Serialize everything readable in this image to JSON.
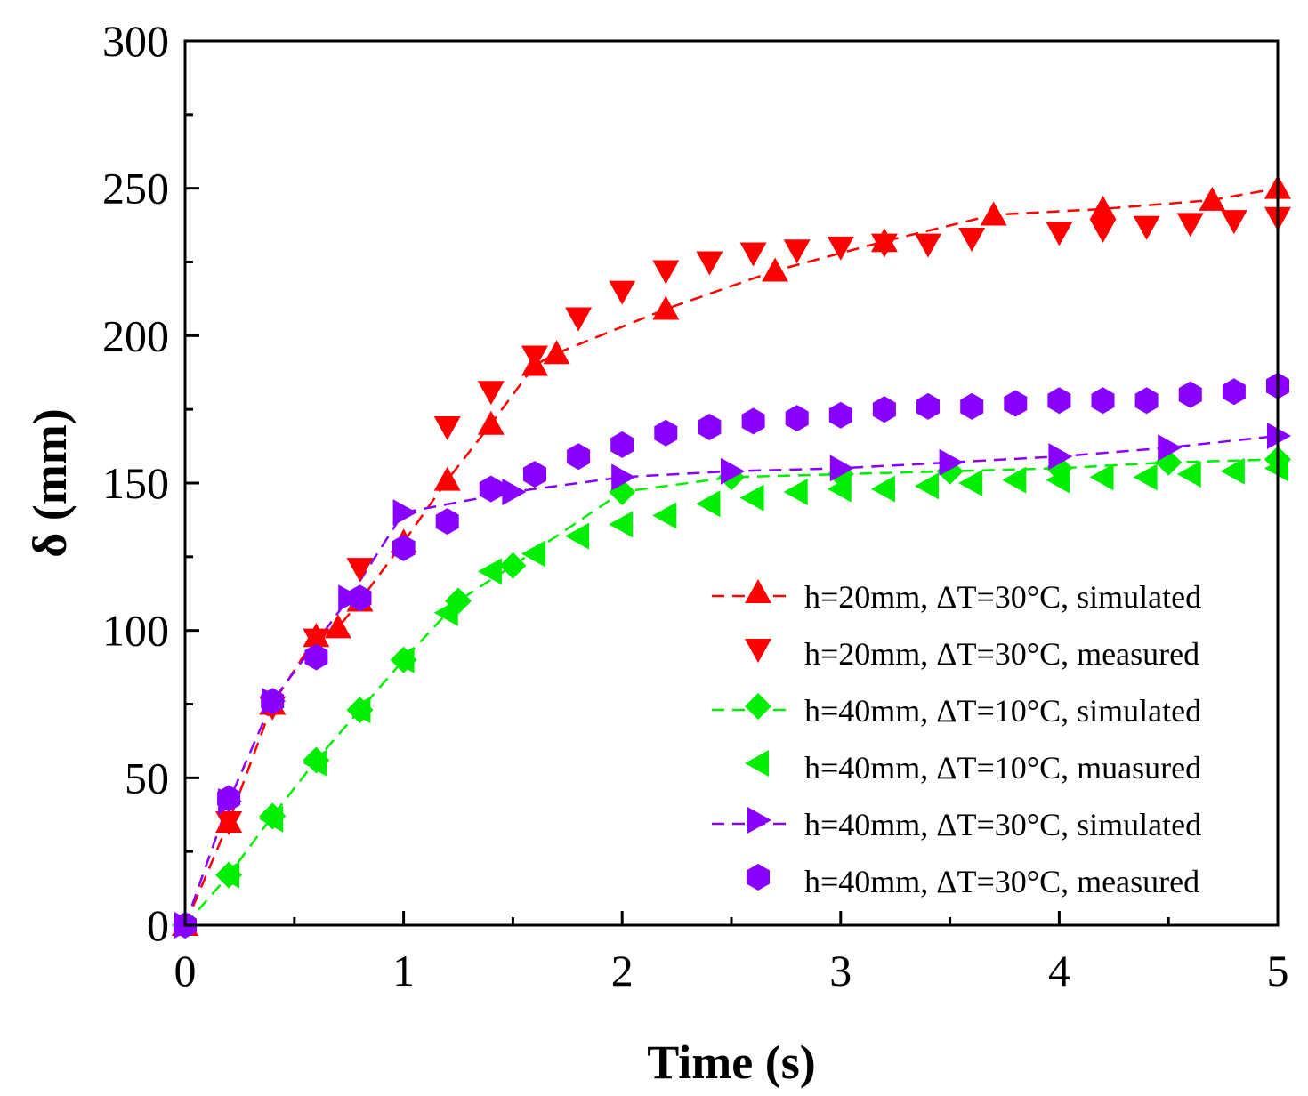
{
  "chart_data": {
    "type": "scatter",
    "title": "",
    "xlabel": "Time (s)",
    "ylabel": "δ (mm)",
    "xlim": [
      0,
      5
    ],
    "ylim": [
      0,
      300
    ],
    "x_ticks": [
      "0",
      "1",
      "2",
      "3",
      "4",
      "5"
    ],
    "y_ticks": [
      "0",
      "50",
      "100",
      "150",
      "200",
      "250",
      "300"
    ],
    "grid": false,
    "legend_position": "bottom-right",
    "series": [
      {
        "name": "h=20mm, ΔT=30°C, simulated",
        "marker": "triangle-up",
        "line": "dashed",
        "color": "#ff0000",
        "x": [
          0,
          0.2,
          0.4,
          0.6,
          0.7,
          0.8,
          1.0,
          1.2,
          1.4,
          1.6,
          1.7,
          2.2,
          2.7,
          3.2,
          3.7,
          4.2,
          4.7,
          5.0
        ],
        "y": [
          0,
          35,
          75,
          98,
          101,
          110,
          130,
          151,
          170,
          190,
          194,
          209,
          222,
          232,
          241,
          243,
          246,
          250
        ]
      },
      {
        "name": "h=20mm, ΔT=30°C, measured",
        "marker": "triangle-down",
        "line": "none",
        "color": "#ff0000",
        "x": [
          0.2,
          0.4,
          0.6,
          0.8,
          1.2,
          1.4,
          1.6,
          1.8,
          2.0,
          2.2,
          2.4,
          2.6,
          2.8,
          3.0,
          3.2,
          3.4,
          3.6,
          4.0,
          4.2,
          4.4,
          4.6,
          4.8,
          5.0
        ],
        "y": [
          35,
          74,
          97,
          121,
          169,
          181,
          193,
          206,
          215,
          222,
          225,
          228,
          229,
          230,
          231,
          231,
          233,
          235,
          236,
          237,
          238,
          239,
          240
        ]
      },
      {
        "name": "h=40mm, ΔT=10°C, simulated",
        "marker": "diamond",
        "line": "dashed",
        "color": "#00ee00",
        "x": [
          0,
          0.2,
          0.4,
          0.6,
          0.8,
          1.0,
          1.25,
          1.5,
          2.0,
          2.5,
          3.0,
          3.5,
          4.0,
          4.5,
          5.0
        ],
        "y": [
          0,
          17,
          37,
          56,
          73,
          90,
          110,
          122,
          147,
          152,
          153,
          154,
          155,
          157,
          158
        ]
      },
      {
        "name": "h=40mm, ΔT=10°C, muasured",
        "marker": "triangle-left",
        "line": "none",
        "color": "#00ee00",
        "x": [
          0.2,
          0.4,
          0.6,
          0.8,
          1.0,
          1.2,
          1.4,
          1.6,
          1.8,
          2.0,
          2.2,
          2.4,
          2.6,
          2.8,
          3.0,
          3.2,
          3.4,
          3.6,
          3.8,
          4.0,
          4.2,
          4.4,
          4.6,
          4.8,
          5.0
        ],
        "y": [
          17,
          36,
          55,
          73,
          90,
          106,
          120,
          126,
          132,
          136,
          139,
          143,
          145,
          147,
          148,
          148,
          149,
          150,
          151,
          151,
          152,
          152,
          153,
          154,
          155
        ]
      },
      {
        "name": "h=40mm, ΔT=30°C, simulated",
        "marker": "triangle-right",
        "line": "dashed",
        "color": "#8800ff",
        "x": [
          0,
          0.2,
          0.4,
          0.75,
          1.0,
          1.5,
          2.0,
          2.5,
          3.0,
          3.5,
          4.0,
          4.5,
          5.0
        ],
        "y": [
          0,
          42,
          76,
          111,
          140,
          147,
          152,
          154,
          155,
          157,
          159,
          162,
          166
        ]
      },
      {
        "name": "h=40mm, ΔT=30°C, measured",
        "marker": "hexagon",
        "line": "none",
        "color": "#8800ff",
        "x": [
          0,
          0.2,
          0.4,
          0.6,
          0.8,
          1.0,
          1.2,
          1.4,
          1.6,
          1.8,
          2.0,
          2.2,
          2.4,
          2.6,
          2.8,
          3.0,
          3.2,
          3.4,
          3.6,
          3.8,
          4.0,
          4.2,
          4.4,
          4.6,
          4.8,
          5.0
        ],
        "y": [
          0,
          43,
          76,
          91,
          111,
          128,
          137,
          148,
          153,
          159,
          163,
          167,
          169,
          171,
          172,
          173,
          175,
          176,
          176,
          177,
          178,
          178,
          178,
          180,
          181,
          183
        ]
      }
    ]
  }
}
